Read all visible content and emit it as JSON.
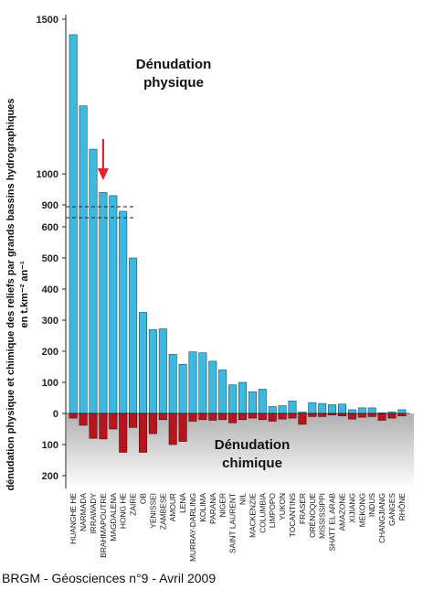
{
  "chart_data": {
    "type": "bar",
    "ylabel_lines": [
      "dénudation physique et chimique des reliefs par grands bassins hydrographiques",
      "en t.km⁻² an⁻¹"
    ],
    "annotation_physical": [
      "Dénudation",
      "physique"
    ],
    "annotation_chemical": [
      "Dénudation",
      "chimique"
    ],
    "y_ticks_upper": [
      "1500",
      "1000",
      "900"
    ],
    "y_ticks_lower": [
      "600",
      "500",
      "400",
      "300",
      "200",
      "100",
      "0"
    ],
    "y_ticks_negative": [
      "100",
      "200"
    ],
    "y_axis_break": {
      "from": 650,
      "to": 900
    },
    "ylim": [
      -200,
      1500
    ],
    "categories": [
      "HUANGHE HE",
      "NARMADA",
      "IRRAWADY",
      "BRAHMAPOUTRE",
      "MAGDALENA",
      "HONG HE",
      "ZAIRE",
      "OB",
      "YENISSEI",
      "ZAMBESE",
      "AMOUR",
      "LENA",
      "MURRAY-DARLING",
      "KOLIMA",
      "PARANA",
      "NIGER",
      "SAINT LAURENT",
      "NIL",
      "MACKENZIE",
      "COLUMBIA",
      "LIMPOPO",
      "YUKON",
      "TOCANTINS",
      "FRASER",
      "ORÉNOQUE",
      "MISSISSIPPI",
      "SHATT EL ARAB",
      "AMAZONE",
      "XIJIANG",
      "MEKONG",
      "INDUS",
      "CHANGJIANG",
      "GANGES",
      "RHÔNE"
    ],
    "series": [
      {
        "name": "Dénudation physique",
        "color": "#3db8de",
        "values": [
          1450,
          1220,
          1080,
          940,
          930,
          650,
          500,
          325,
          270,
          272,
          190,
          158,
          198,
          195,
          168,
          140,
          92,
          100,
          70,
          78,
          22,
          25,
          40,
          5,
          35,
          32,
          28,
          30,
          12,
          18,
          18,
          2,
          5,
          12
        ]
      },
      {
        "name": "Dénudation chimique",
        "color": "#b8141e",
        "values": [
          15,
          38,
          80,
          82,
          50,
          125,
          45,
          125,
          65,
          20,
          100,
          90,
          25,
          20,
          22,
          20,
          30,
          20,
          15,
          20,
          25,
          18,
          15,
          35,
          10,
          10,
          5,
          8,
          18,
          12,
          10,
          22,
          15,
          8
        ]
      }
    ],
    "arrow_category": "BRAHMAPOUTRE",
    "arrow_color": "#e8202a",
    "background_gradient": [
      "#b0b0b0",
      "#ffffff"
    ]
  },
  "source": "BRGM - Géosciences n°9 - Avril 2009"
}
